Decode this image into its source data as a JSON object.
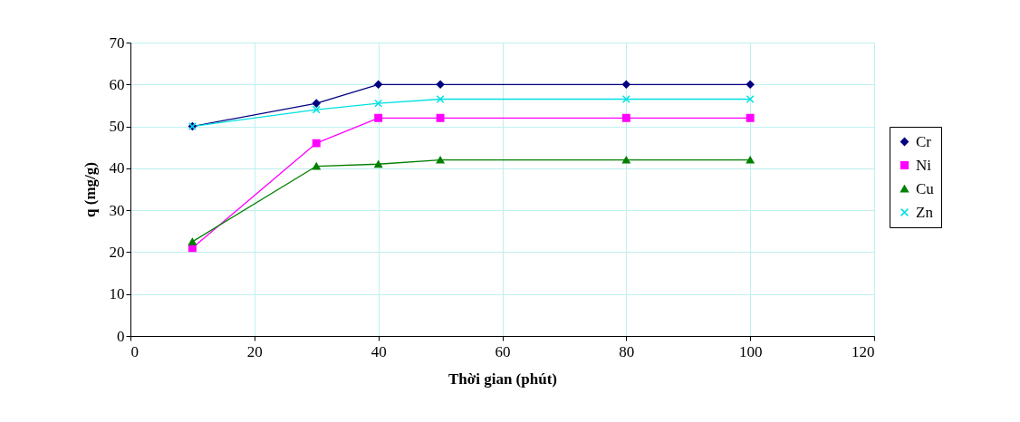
{
  "chart_data": {
    "type": "line",
    "xlabel": "Thời gian (phút)",
    "ylabel": "q (mg/g)",
    "xlim": [
      0,
      120
    ],
    "xticks": [
      0,
      20,
      40,
      60,
      80,
      100,
      120
    ],
    "ylim": [
      0,
      70
    ],
    "yticks": [
      0,
      10,
      20,
      30,
      40,
      50,
      60,
      70
    ],
    "grid": true,
    "legend": "right",
    "line_style": "solid",
    "series": [
      {
        "name": "Cr",
        "color": "#000080",
        "marker": "diamond",
        "x": [
          10,
          30,
          40,
          50,
          80,
          100
        ],
        "values": [
          50,
          55.5,
          60,
          60,
          60,
          60
        ]
      },
      {
        "name": "Ni",
        "color": "#ff00ff",
        "marker": "square",
        "x": [
          10,
          30,
          40,
          50,
          80,
          100
        ],
        "values": [
          21,
          46,
          52,
          52,
          52,
          52
        ]
      },
      {
        "name": "Cu",
        "color": "#008000",
        "marker": "triangle",
        "x": [
          10,
          30,
          40,
          50,
          80,
          100
        ],
        "values": [
          22.5,
          40.5,
          41,
          42,
          42,
          42
        ]
      },
      {
        "name": "Zn",
        "color": "#00e0e0",
        "marker": "cross",
        "x": [
          10,
          30,
          40,
          50,
          80,
          100
        ],
        "values": [
          50,
          54,
          55.5,
          56.5,
          56.5,
          56.5
        ]
      }
    ]
  }
}
